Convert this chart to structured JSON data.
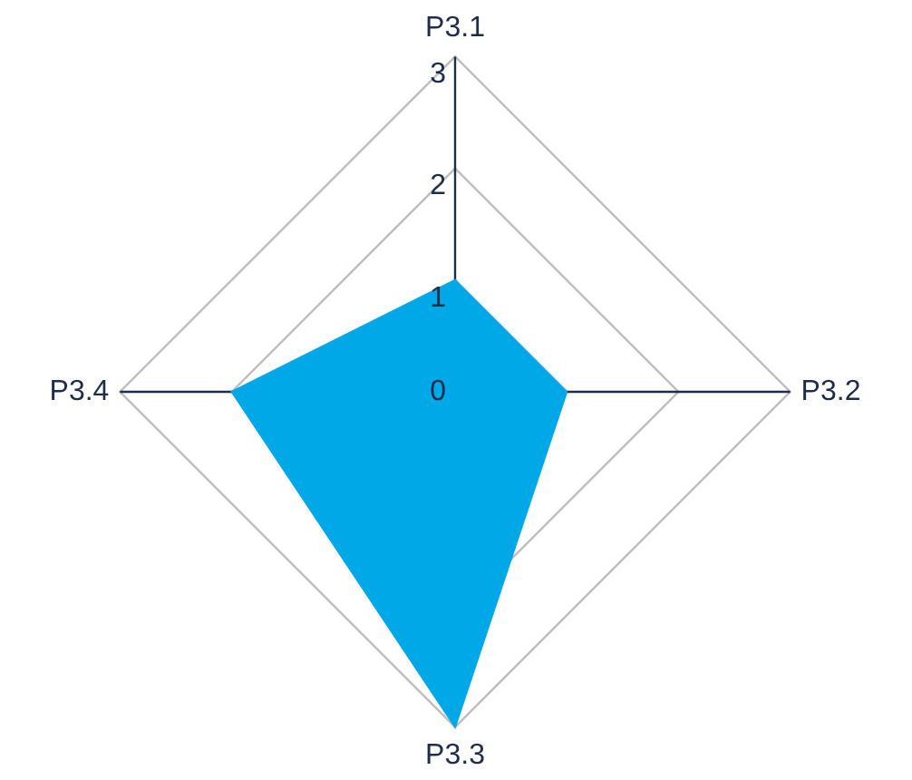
{
  "chart_data": {
    "type": "radar",
    "categories": [
      "P3.1",
      "P3.2",
      "P3.3",
      "P3.4"
    ],
    "series": [
      {
        "color": "#00a8e8",
        "values": [
          1,
          1,
          3,
          2
        ]
      }
    ],
    "ylim": [
      0,
      3
    ],
    "yticks": [
      0,
      1,
      2,
      3
    ],
    "grid": true,
    "marker": "none"
  }
}
